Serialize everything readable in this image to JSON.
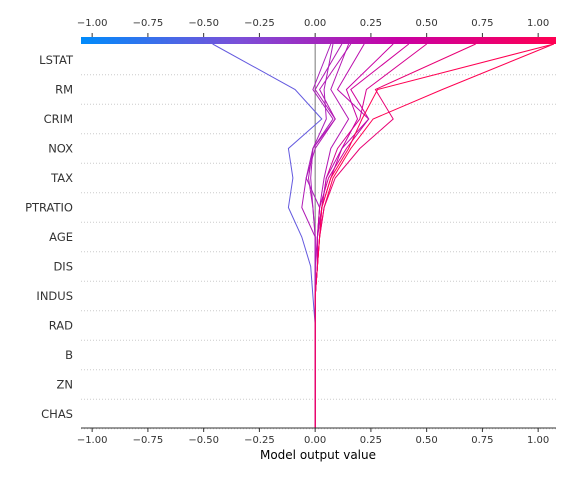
{
  "chart_data": {
    "type": "line",
    "xlabel": "Model output value",
    "xlim": [
      -1.05,
      1.08
    ],
    "xticks": [
      -1.0,
      -0.75,
      -0.5,
      -0.25,
      0.0,
      0.25,
      0.5,
      0.75,
      1.0
    ],
    "xtick_labels": [
      "−1.00",
      "−0.75",
      "−0.50",
      "−0.25",
      "0.00",
      "0.25",
      "0.50",
      "0.75",
      "1.00"
    ],
    "features": [
      "LSTAT",
      "RM",
      "CRIM",
      "NOX",
      "TAX",
      "PTRATIO",
      "AGE",
      "DIS",
      "INDUS",
      "RAD",
      "B",
      "ZN",
      "CHAS"
    ],
    "base_value": 0.0,
    "colorscale": [
      "#008bfb",
      "#7b4fd8",
      "#c800a4",
      "#ff0052"
    ],
    "grid": true,
    "series": [
      {
        "values": [
          -0.46,
          -0.09,
          0.03,
          -0.12,
          -0.1,
          -0.12,
          -0.06,
          -0.02,
          -0.01,
          0.0,
          0.0,
          0.0,
          0.0,
          0.0
        ]
      },
      {
        "values": [
          0.35,
          0.14,
          0.19,
          0.12,
          0.07,
          0.03,
          0.02,
          0.01,
          0.0,
          0.0,
          0.0,
          0.0,
          0.0,
          0.0
        ]
      },
      {
        "values": [
          0.5,
          0.23,
          0.2,
          0.1,
          0.05,
          0.03,
          0.01,
          0.01,
          0.0,
          0.0,
          0.0,
          0.0,
          0.0,
          0.0
        ]
      },
      {
        "values": [
          0.15,
          0.07,
          0.15,
          0.07,
          0.04,
          0.02,
          0.01,
          0.01,
          0.0,
          0.0,
          0.0,
          0.0,
          0.0,
          0.0
        ]
      },
      {
        "values": [
          0.12,
          0.0,
          0.09,
          0.0,
          -0.04,
          -0.06,
          0.0,
          0.0,
          0.0,
          0.0,
          0.0,
          0.0,
          0.0,
          0.0
        ]
      },
      {
        "values": [
          1.07,
          0.57,
          0.26,
          0.16,
          0.08,
          0.04,
          0.02,
          0.01,
          0.0,
          0.0,
          0.0,
          0.0,
          0.0,
          0.0
        ]
      },
      {
        "values": [
          0.72,
          0.27,
          0.35,
          0.2,
          0.09,
          0.04,
          0.02,
          0.01,
          0.0,
          0.0,
          0.0,
          0.0,
          0.0,
          0.0
        ]
      },
      {
        "values": [
          0.16,
          0.02,
          0.09,
          -0.01,
          -0.03,
          -0.01,
          0.0,
          0.0,
          0.0,
          0.0,
          0.0,
          0.0,
          0.0,
          0.0
        ]
      },
      {
        "values": [
          0.07,
          -0.01,
          0.08,
          -0.01,
          -0.04,
          0.02,
          0.01,
          0.01,
          0.0,
          0.0,
          0.0,
          0.0,
          0.0,
          0.0
        ]
      },
      {
        "values": [
          0.42,
          0.16,
          0.24,
          0.14,
          0.06,
          0.02,
          0.01,
          0.01,
          0.0,
          0.0,
          0.0,
          0.0,
          0.0,
          0.0
        ]
      },
      {
        "values": [
          0.22,
          0.1,
          0.24,
          0.12,
          0.05,
          0.03,
          0.01,
          0.0,
          0.0,
          0.0,
          0.0,
          0.0,
          0.0,
          0.0
        ]
      },
      {
        "values": [
          0.08,
          0.04,
          0.05,
          -0.01,
          -0.02,
          -0.01,
          0.0,
          0.0,
          0.0,
          0.0,
          0.0,
          0.0,
          0.0,
          0.0
        ]
      },
      {
        "values": [
          1.07,
          0.28,
          0.21,
          0.15,
          0.07,
          0.03,
          0.02,
          0.01,
          0.0,
          0.0,
          0.0,
          0.0,
          0.0,
          0.0
        ]
      }
    ]
  }
}
